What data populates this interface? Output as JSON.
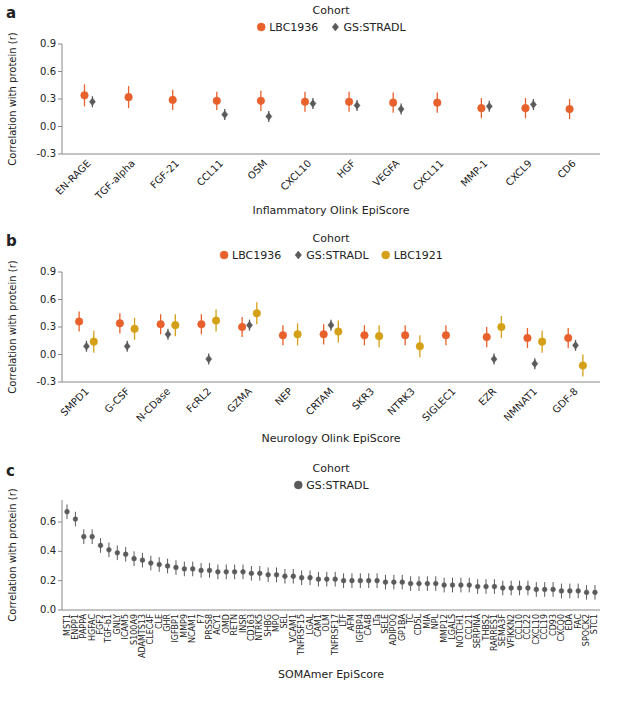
{
  "chart_data": [
    {
      "type": "errorbar",
      "title": "a",
      "xlabel": "Inflammatory Olink EpiScore",
      "ylabel": "Correlation with protein (r)",
      "legend_title": "Cohort",
      "legend": "top",
      "grid": false,
      "categories": [
        "EN-RAGE",
        "TGF-alpha",
        "FGF-21",
        "CCL11",
        "OSM",
        "CXCL10",
        "HGF",
        "VEGFA",
        "CXCL11",
        "MMP-1",
        "CXCL9",
        "CD6"
      ],
      "ylim": [
        -0.3,
        0.9
      ],
      "yticks": [
        -0.3,
        {
          "value": 0.0,
          "label": "0.0"
        },
        0.3,
        0.6,
        0.9
      ],
      "series": [
        {
          "name": "LBC1936",
          "color": "#E8602C",
          "marker": "circle",
          "values": [
            0.34,
            0.32,
            0.29,
            0.28,
            0.28,
            0.27,
            0.27,
            0.26,
            0.26,
            0.2,
            0.2,
            0.19
          ],
          "lower": [
            0.22,
            0.2,
            0.18,
            0.18,
            0.17,
            0.16,
            0.16,
            0.15,
            0.15,
            0.09,
            0.09,
            0.08
          ],
          "upper": [
            0.46,
            0.44,
            0.4,
            0.38,
            0.39,
            0.38,
            0.38,
            0.37,
            0.37,
            0.31,
            0.31,
            0.3
          ]
        },
        {
          "name": "GS:STRADL",
          "color": "#5A5A5A",
          "marker": "diamond",
          "values": [
            0.27,
            null,
            null,
            0.13,
            0.11,
            0.25,
            0.23,
            0.19,
            null,
            0.22,
            0.24,
            null
          ],
          "lower": [
            0.21,
            null,
            null,
            0.07,
            0.05,
            0.19,
            0.17,
            0.13,
            null,
            0.16,
            0.18,
            null
          ],
          "upper": [
            0.33,
            null,
            null,
            0.19,
            0.17,
            0.31,
            0.29,
            0.25,
            null,
            0.28,
            0.3,
            null
          ]
        }
      ]
    },
    {
      "type": "errorbar",
      "title": "b",
      "xlabel": "Neurology Olink EpiScore",
      "ylabel": "Correlation with protein (r)",
      "legend_title": "Cohort",
      "legend": "top",
      "grid": false,
      "categories": [
        "SMPD1",
        "G-CSF",
        "N-CDase",
        "FcRL2",
        "GZMA",
        "NEP",
        "CRTAM",
        "SKR3",
        "NTRK3",
        "SIGLEC1",
        "EZR",
        "NMNAT1",
        "GDF-8"
      ],
      "ylim": [
        -0.3,
        0.9
      ],
      "yticks": [
        -0.3,
        {
          "value": 0.0,
          "label": "0.0"
        },
        0.3,
        0.6,
        0.9
      ],
      "series": [
        {
          "name": "LBC1936",
          "color": "#E8602C",
          "marker": "circle",
          "values": [
            0.36,
            0.34,
            0.33,
            0.33,
            0.3,
            0.21,
            0.22,
            0.21,
            0.21,
            0.21,
            0.19,
            0.18,
            0.18
          ],
          "lower": [
            0.25,
            0.23,
            0.22,
            0.22,
            0.19,
            0.1,
            0.11,
            0.1,
            0.1,
            0.1,
            0.08,
            0.07,
            0.07
          ],
          "upper": [
            0.47,
            0.45,
            0.44,
            0.44,
            0.41,
            0.32,
            0.33,
            0.32,
            0.32,
            0.32,
            0.3,
            0.29,
            0.29
          ]
        },
        {
          "name": "GS:STRADL",
          "color": "#5A5A5A",
          "marker": "diamond",
          "values": [
            0.09,
            0.09,
            0.22,
            -0.05,
            0.32,
            null,
            0.32,
            null,
            null,
            null,
            -0.05,
            -0.1,
            0.1
          ],
          "lower": [
            0.03,
            0.03,
            0.16,
            -0.11,
            0.26,
            null,
            0.26,
            null,
            null,
            null,
            -0.11,
            -0.16,
            0.04
          ],
          "upper": [
            0.15,
            0.15,
            0.28,
            0.01,
            0.38,
            null,
            0.38,
            null,
            null,
            null,
            0.01,
            -0.04,
            0.16
          ]
        },
        {
          "name": "LBC1921",
          "color": "#D4A017",
          "marker": "circle",
          "values": [
            0.14,
            0.28,
            0.32,
            0.37,
            0.45,
            0.22,
            0.25,
            0.2,
            0.09,
            null,
            0.3,
            0.14,
            -0.12
          ],
          "lower": [
            0.02,
            0.16,
            0.2,
            0.25,
            0.33,
            0.1,
            0.13,
            0.08,
            -0.03,
            null,
            0.18,
            0.02,
            -0.24
          ],
          "upper": [
            0.26,
            0.4,
            0.44,
            0.49,
            0.57,
            0.34,
            0.37,
            0.32,
            0.21,
            null,
            0.42,
            0.26,
            0.0
          ]
        }
      ]
    },
    {
      "type": "errorbar",
      "title": "c",
      "xlabel": "SOMAmer EpiScore",
      "ylabel": "Correlation with protein (r)",
      "legend_title": "Cohort",
      "legend": "top",
      "grid": false,
      "categories": [
        "MST1",
        "ENPP1",
        "PAPPA",
        "HGFAC",
        "FGF2",
        "TGF-b1",
        "GNLY",
        "ICAM5",
        "S100A9",
        "ADAMTS13",
        "CLEC4F",
        "CLE",
        "GHR",
        "IGFBP1",
        "MMP9",
        "NCAM1",
        "F7",
        "PRSS8",
        "ACY1",
        "OMD",
        "RETN",
        "INSR",
        "CD163",
        "NTRK5",
        "SHBG",
        "MPO",
        "SEL",
        "VCAM1",
        "TNFRSF15",
        "LGAL",
        "CAM1",
        "OLM",
        "TNFRSF17",
        "LTF",
        "AFM",
        "IGFBP4",
        "CA4B",
        "LTa",
        "SELE",
        "ADIPOQ",
        "GP1BA",
        "TC",
        "CD5L",
        "MIA",
        "NPL",
        "MMP12",
        "LGALS",
        "NOTCH1",
        "CCL21",
        "SERPINA",
        "THBS2",
        "RARRES1",
        "SEMA3F",
        "VFIKKN2",
        "CCL10",
        "CCL22",
        "CXCL10",
        "CCL19",
        "CD93",
        "CXCQ0",
        "EDA",
        "FAC",
        "SPOCK2",
        "STC1"
      ],
      "ylim": [
        0.0,
        0.75
      ],
      "yticks": [
        {
          "value": 0.0,
          "label": "0.0"
        },
        0.2,
        0.4,
        0.6
      ],
      "series": [
        {
          "name": "GS:STRADL",
          "color": "#5A5A5A",
          "marker": "circle",
          "values": [
            0.67,
            0.62,
            0.5,
            0.5,
            0.44,
            0.41,
            0.39,
            0.38,
            0.35,
            0.34,
            0.32,
            0.31,
            0.3,
            0.29,
            0.28,
            0.28,
            0.27,
            0.27,
            0.26,
            0.26,
            0.26,
            0.26,
            0.25,
            0.25,
            0.24,
            0.24,
            0.23,
            0.23,
            0.22,
            0.22,
            0.21,
            0.21,
            0.21,
            0.2,
            0.2,
            0.2,
            0.2,
            0.2,
            0.19,
            0.19,
            0.19,
            0.18,
            0.18,
            0.18,
            0.18,
            0.17,
            0.17,
            0.17,
            0.17,
            0.16,
            0.16,
            0.16,
            0.15,
            0.15,
            0.15,
            0.15,
            0.14,
            0.14,
            0.14,
            0.13,
            0.13,
            0.13,
            0.12,
            0.12
          ],
          "lower": [
            0.62,
            0.57,
            0.45,
            0.45,
            0.39,
            0.36,
            0.34,
            0.33,
            0.3,
            0.29,
            0.27,
            0.26,
            0.25,
            0.24,
            0.23,
            0.23,
            0.22,
            0.22,
            0.21,
            0.21,
            0.21,
            0.21,
            0.2,
            0.2,
            0.19,
            0.19,
            0.18,
            0.18,
            0.17,
            0.17,
            0.16,
            0.16,
            0.16,
            0.15,
            0.15,
            0.15,
            0.15,
            0.15,
            0.14,
            0.14,
            0.14,
            0.13,
            0.13,
            0.13,
            0.13,
            0.12,
            0.12,
            0.12,
            0.12,
            0.11,
            0.11,
            0.11,
            0.1,
            0.1,
            0.1,
            0.1,
            0.09,
            0.09,
            0.09,
            0.08,
            0.08,
            0.08,
            0.07,
            0.07
          ],
          "upper": [
            0.72,
            0.67,
            0.55,
            0.55,
            0.49,
            0.46,
            0.44,
            0.43,
            0.4,
            0.39,
            0.37,
            0.36,
            0.35,
            0.34,
            0.33,
            0.33,
            0.32,
            0.32,
            0.31,
            0.31,
            0.31,
            0.31,
            0.3,
            0.3,
            0.29,
            0.29,
            0.28,
            0.28,
            0.27,
            0.27,
            0.26,
            0.26,
            0.26,
            0.25,
            0.25,
            0.25,
            0.25,
            0.25,
            0.24,
            0.24,
            0.24,
            0.23,
            0.23,
            0.23,
            0.23,
            0.22,
            0.22,
            0.22,
            0.22,
            0.21,
            0.21,
            0.21,
            0.2,
            0.2,
            0.2,
            0.2,
            0.19,
            0.19,
            0.19,
            0.18,
            0.18,
            0.18,
            0.17,
            0.17
          ]
        }
      ]
    }
  ]
}
